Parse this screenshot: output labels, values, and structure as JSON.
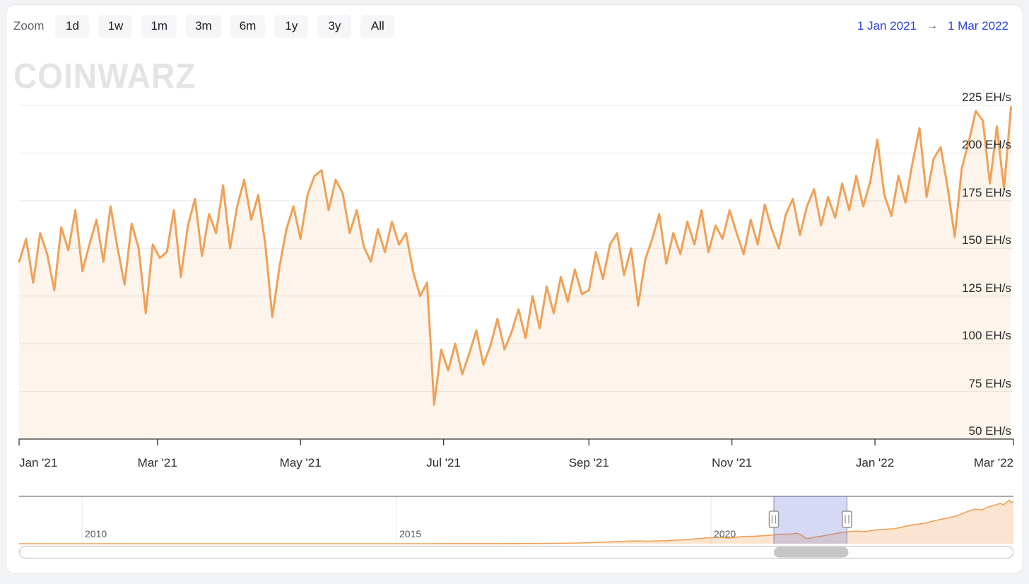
{
  "toolbar": {
    "zoom_label": "Zoom",
    "buttons": [
      "1d",
      "1w",
      "1m",
      "3m",
      "6m",
      "1y",
      "3y",
      "All"
    ],
    "range_start": "1 Jan 2021",
    "range_arrow": "→",
    "range_end": "1 Mar 2022"
  },
  "branding": {
    "logo_text": "COINWARZ"
  },
  "colors": {
    "series_line": "#f0a157",
    "series_fill": "rgba(240,161,87,0.12)",
    "nav_fill": "rgba(240,161,87,0.28)",
    "gridline": "#e7e7e7",
    "axis_line": "#333333",
    "axis_text": "#2b2b2b",
    "link_blue": "#2744dd",
    "nav_mask": "rgba(108,118,219,0.28)",
    "nav_outline": "#8a8d91",
    "scrollbar_track_border": "#cccccc",
    "scrollbar_thumb": "#c6c6c6",
    "handle_stroke": "#949494"
  },
  "chart_data": {
    "type": "line",
    "title": "",
    "ylabel": "",
    "unit": "EH/s",
    "legend": "none",
    "grid": "horizontal",
    "main_chart": {
      "x_start_date": "1 Jan 2021",
      "x_end_date": "1 Mar 2022",
      "x_step_days": 3,
      "values": [
        143,
        155,
        132,
        158,
        147,
        128,
        161,
        149,
        170,
        138,
        152,
        165,
        143,
        172,
        150,
        131,
        163,
        150,
        116,
        152,
        145,
        148,
        170,
        135,
        162,
        176,
        146,
        168,
        158,
        183,
        150,
        172,
        186,
        165,
        178,
        152,
        114,
        140,
        160,
        172,
        155,
        178,
        188,
        191,
        170,
        186,
        179,
        158,
        170,
        151,
        143,
        160,
        148,
        164,
        152,
        158,
        138,
        125,
        132,
        68,
        97,
        86,
        100,
        84,
        95,
        107,
        89,
        99,
        113,
        97,
        106,
        118,
        103,
        125,
        108,
        130,
        116,
        135,
        122,
        139,
        126,
        128,
        148,
        134,
        152,
        158,
        136,
        150,
        120,
        144,
        155,
        168,
        142,
        158,
        147,
        164,
        152,
        170,
        148,
        162,
        155,
        170,
        158,
        147,
        165,
        152,
        173,
        160,
        150,
        168,
        176,
        157,
        172,
        181,
        162,
        177,
        166,
        184,
        170,
        188,
        172,
        185,
        207,
        178,
        167,
        188,
        174,
        195,
        213,
        177,
        197,
        203,
        182,
        156,
        192,
        206,
        222,
        217,
        184,
        214,
        181,
        224
      ],
      "x_tick_days": [
        0,
        59,
        120,
        181,
        243,
        304,
        365,
        424
      ],
      "x_tick_labels": [
        "Jan '21",
        "Mar '21",
        "May '21",
        "Jul '21",
        "Sep '21",
        "Nov '21",
        "Jan '22",
        "Mar '22"
      ],
      "y_ticks": [
        225,
        200,
        175,
        150,
        125,
        100,
        75,
        50
      ],
      "y_tick_suffix": " EH/s",
      "ylim": [
        50,
        228
      ]
    },
    "navigator": {
      "x_unit": "decimal_year",
      "range": [
        2009.0,
        2024.81
      ],
      "value_max": 750,
      "year_labels": [
        {
          "label": "2010",
          "year": 2010
        },
        {
          "label": "2015",
          "year": 2015
        },
        {
          "label": "2020",
          "year": 2020
        }
      ],
      "selection": {
        "start_year": 2021.0,
        "end_year": 2022.163
      },
      "points": [
        [
          2009.0,
          0
        ],
        [
          2010.0,
          0
        ],
        [
          2011.0,
          0.001
        ],
        [
          2012.0,
          0.01
        ],
        [
          2013.0,
          0.06
        ],
        [
          2013.5,
          0.2
        ],
        [
          2014.0,
          0.3
        ],
        [
          2014.5,
          0.35
        ],
        [
          2015.0,
          0.45
        ],
        [
          2015.5,
          0.5
        ],
        [
          2016.0,
          0.9
        ],
        [
          2016.5,
          1.6
        ],
        [
          2017.0,
          3
        ],
        [
          2017.5,
          6
        ],
        [
          2017.9,
          12
        ],
        [
          2018.2,
          22
        ],
        [
          2018.5,
          35
        ],
        [
          2018.8,
          48
        ],
        [
          2019.0,
          42
        ],
        [
          2019.3,
          52
        ],
        [
          2019.6,
          70
        ],
        [
          2019.9,
          95
        ],
        [
          2020.1,
          112
        ],
        [
          2020.3,
          98
        ],
        [
          2020.5,
          122
        ],
        [
          2020.7,
          128
        ],
        [
          2020.9,
          142
        ],
        [
          2021.0,
          150
        ],
        [
          2021.1,
          162
        ],
        [
          2021.25,
          165
        ],
        [
          2021.37,
          180
        ],
        [
          2021.45,
          142
        ],
        [
          2021.5,
          95
        ],
        [
          2021.55,
          88
        ],
        [
          2021.65,
          112
        ],
        [
          2021.8,
          135
        ],
        [
          2021.9,
          158
        ],
        [
          2022.0,
          178
        ],
        [
          2022.1,
          195
        ],
        [
          2022.16,
          202
        ],
        [
          2022.3,
          215
        ],
        [
          2022.45,
          208
        ],
        [
          2022.6,
          232
        ],
        [
          2022.75,
          245
        ],
        [
          2022.9,
          255
        ],
        [
          2023.0,
          275
        ],
        [
          2023.1,
          300
        ],
        [
          2023.25,
          330
        ],
        [
          2023.4,
          348
        ],
        [
          2023.5,
          380
        ],
        [
          2023.65,
          415
        ],
        [
          2023.8,
          450
        ],
        [
          2023.9,
          475
        ],
        [
          2024.0,
          515
        ],
        [
          2024.1,
          560
        ],
        [
          2024.2,
          590
        ],
        [
          2024.3,
          575
        ],
        [
          2024.4,
          625
        ],
        [
          2024.5,
          655
        ],
        [
          2024.6,
          690
        ],
        [
          2024.65,
          665
        ],
        [
          2024.7,
          710
        ],
        [
          2024.74,
          745
        ],
        [
          2024.77,
          705
        ],
        [
          2024.81,
          730
        ]
      ]
    }
  }
}
